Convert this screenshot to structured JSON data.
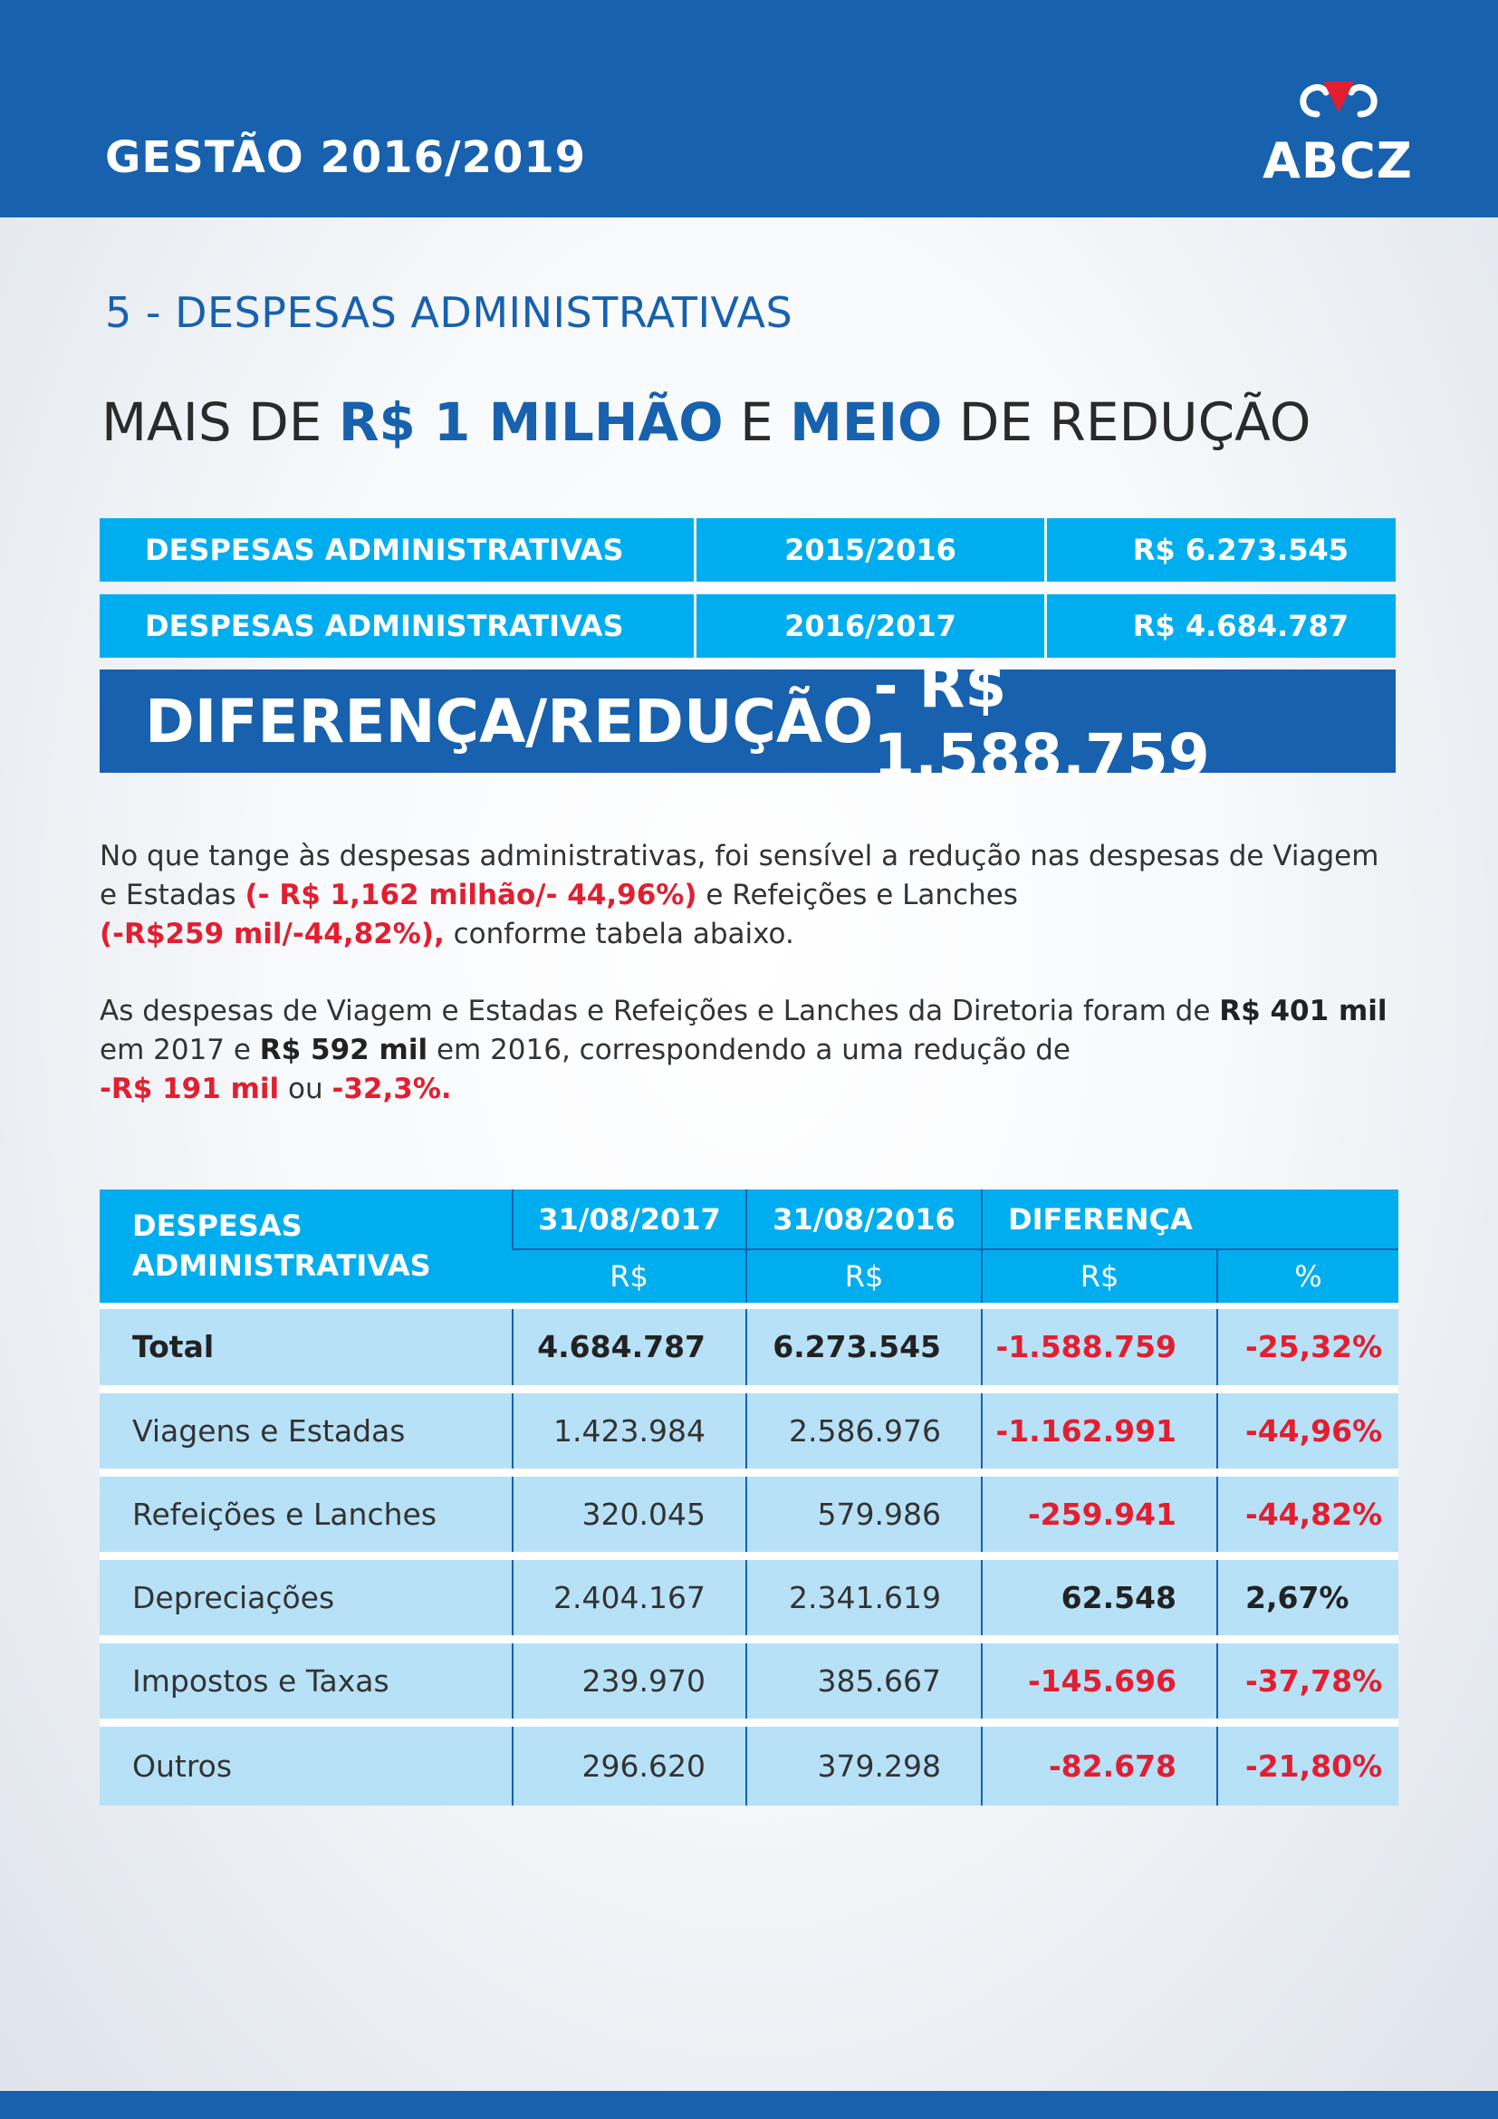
{
  "header": {
    "edition": "GESTÃO 2016/2019",
    "logo_text": "ABCZ"
  },
  "colors": {
    "brand_blue": "#1761ae",
    "cyan": "#00aeef",
    "light_cyan": "#b7e1f7",
    "negative_red": "#e31e30"
  },
  "section": {
    "title": "5 - DESPESAS ADMINISTRATIVAS",
    "headline": {
      "part1": "MAIS DE ",
      "highlight1": "R$ 1 MILHÃO",
      "part2": " E ",
      "highlight2": "MEIO",
      "part3": " DE REDUÇÃO"
    }
  },
  "summary": {
    "rows": [
      {
        "label": "DESPESAS ADMINISTRATIVAS",
        "period": "2015/2016",
        "value": "R$ 6.273.545"
      },
      {
        "label": "DESPESAS ADMINISTRATIVAS",
        "period": "2016/2017",
        "value": "R$ 4.684.787"
      }
    ],
    "difference": {
      "label": "DIFERENÇA/REDUÇÃO",
      "value": "- R$ 1.588.759"
    }
  },
  "paragraphs": {
    "p1": {
      "t1": "No que tange às despesas administrativas, foi sensível a redução nas despesas de Viagem e Estadas ",
      "r1": "(- R$ 1,162 milhão/- 44,96%)",
      "t2": " e Refeições e Lanches ",
      "r2": "(-R$259 mil/-44,82%),",
      "t3": " conforme tabela abaixo."
    },
    "p2": {
      "t1": "As despesas de Viagem e Estadas e Refeições e Lanches da Diretoria foram de ",
      "b1": "R$ 401 mil",
      "t2": " em 2017 e ",
      "b2": "R$ 592 mil",
      "t3": " em 2016, correspondendo a uma redução de ",
      "r1": "-R$ 191 mil",
      "t4": " ou ",
      "r2": "-32,3%."
    }
  },
  "table": {
    "headers": {
      "desc_line1": "DESPESAS",
      "desc_line2": "ADMINISTRATIVAS",
      "date1": "31/08/2017",
      "date2": "31/08/2016",
      "diff": "DIFERENÇA",
      "unit_rs": "R$",
      "unit_pct": "%"
    },
    "rows": [
      {
        "label": "Total",
        "v2017": "4.684.787",
        "v2016": "6.273.545",
        "diff": "-1.588.759",
        "pct": "-25,32%"
      },
      {
        "label": "Viagens e Estadas",
        "v2017": "1.423.984",
        "v2016": "2.586.976",
        "diff": "-1.162.991",
        "pct": "-44,96%"
      },
      {
        "label": "Refeições e Lanches",
        "v2017": "320.045",
        "v2016": "579.986",
        "diff": "-259.941",
        "pct": "-44,82%"
      },
      {
        "label": "Depreciações",
        "v2017": "2.404.167",
        "v2016": "2.341.619",
        "diff": "62.548",
        "pct": "2,67%"
      },
      {
        "label": "Impostos e Taxas",
        "v2017": "239.970",
        "v2016": "385.667",
        "diff": "-145.696",
        "pct": "-37,78%"
      },
      {
        "label": "Outros",
        "v2017": "296.620",
        "v2016": "379.298",
        "diff": "-82.678",
        "pct": "-21,80%"
      }
    ]
  }
}
